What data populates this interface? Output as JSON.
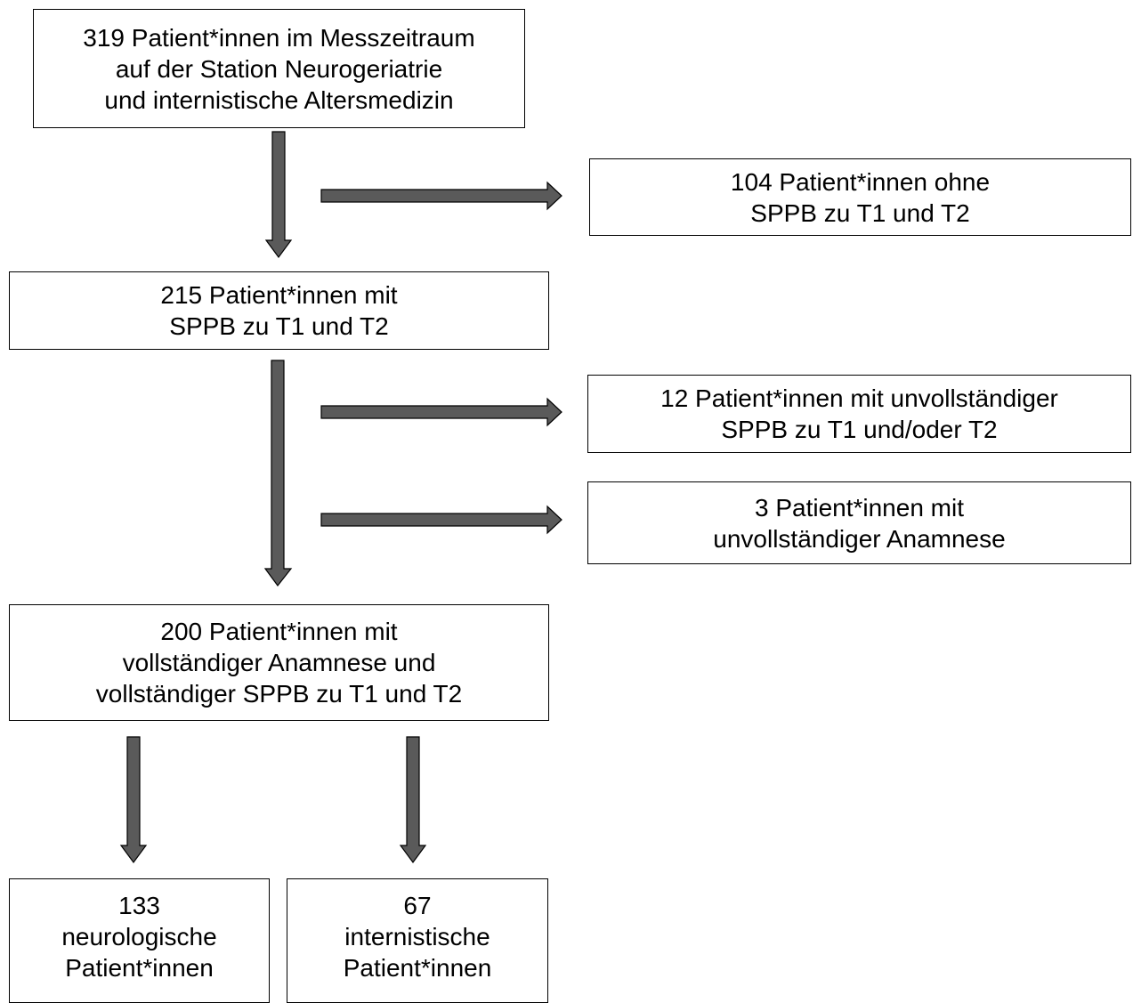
{
  "colors": {
    "arrow_fill": "#5a5a5a",
    "arrow_stroke": "#000000",
    "box_border": "#000000"
  },
  "boxes": {
    "start": {
      "lines": [
        "319 Patient*innen im Messzeitraum",
        "auf der Station Neurogeriatrie",
        "und internistische Altersmedizin"
      ]
    },
    "excluded_no_sppb": {
      "lines": [
        "104 Patient*innen ohne",
        "SPPB zu T1 und T2"
      ]
    },
    "with_sppb": {
      "lines": [
        "215 Patient*innen mit",
        "SPPB zu T1 und T2"
      ]
    },
    "excluded_incomplete_sppb": {
      "lines": [
        "12 Patient*innen mit unvollständiger",
        "SPPB zu T1 und/oder T2"
      ]
    },
    "excluded_incomplete_anamnesis": {
      "lines": [
        "3 Patient*innen mit",
        "unvollständiger Anamnese"
      ]
    },
    "complete": {
      "lines": [
        "200 Patient*innen mit",
        "vollständiger Anamnese und",
        "vollständiger SPPB zu T1 und T2"
      ]
    },
    "neurological": {
      "lines": [
        "133",
        "neurologische",
        "Patient*innen"
      ]
    },
    "internal": {
      "lines": [
        "67",
        "internistische",
        "Patient*innen"
      ]
    }
  }
}
